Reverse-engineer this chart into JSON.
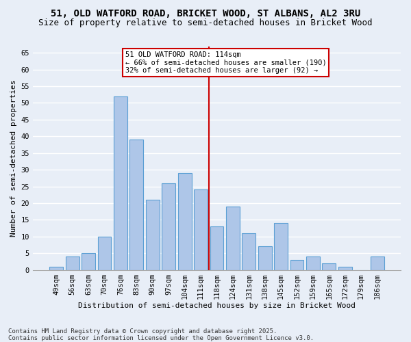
{
  "title1": "51, OLD WATFORD ROAD, BRICKET WOOD, ST ALBANS, AL2 3RU",
  "title2": "Size of property relative to semi-detached houses in Bricket Wood",
  "xlabel": "Distribution of semi-detached houses by size in Bricket Wood",
  "ylabel": "Number of semi-detached properties",
  "categories": [
    "49sqm",
    "56sqm",
    "63sqm",
    "70sqm",
    "76sqm",
    "83sqm",
    "90sqm",
    "97sqm",
    "104sqm",
    "111sqm",
    "118sqm",
    "124sqm",
    "131sqm",
    "138sqm",
    "145sqm",
    "152sqm",
    "159sqm",
    "165sqm",
    "172sqm",
    "179sqm",
    "186sqm"
  ],
  "values": [
    1,
    4,
    5,
    10,
    52,
    39,
    21,
    26,
    29,
    24,
    13,
    19,
    11,
    7,
    14,
    3,
    4,
    2,
    1,
    0,
    4
  ],
  "bar_color": "#aec6e8",
  "bar_edge_color": "#5a9fd4",
  "pct_smaller": 66,
  "n_smaller": 190,
  "pct_larger": 32,
  "n_larger": 92,
  "vline_color": "#cc0000",
  "annotation_box_color": "#cc0000",
  "ylim": [
    0,
    67
  ],
  "yticks": [
    0,
    5,
    10,
    15,
    20,
    25,
    30,
    35,
    40,
    45,
    50,
    55,
    60,
    65
  ],
  "bg_color": "#e8eef7",
  "grid_color": "#ffffff",
  "footer": "Contains HM Land Registry data © Crown copyright and database right 2025.\nContains public sector information licensed under the Open Government Licence v3.0.",
  "title_fontsize": 10,
  "subtitle_fontsize": 9,
  "axis_label_fontsize": 8,
  "tick_fontsize": 7.5,
  "footer_fontsize": 6.5,
  "annot_fontsize": 7.5
}
